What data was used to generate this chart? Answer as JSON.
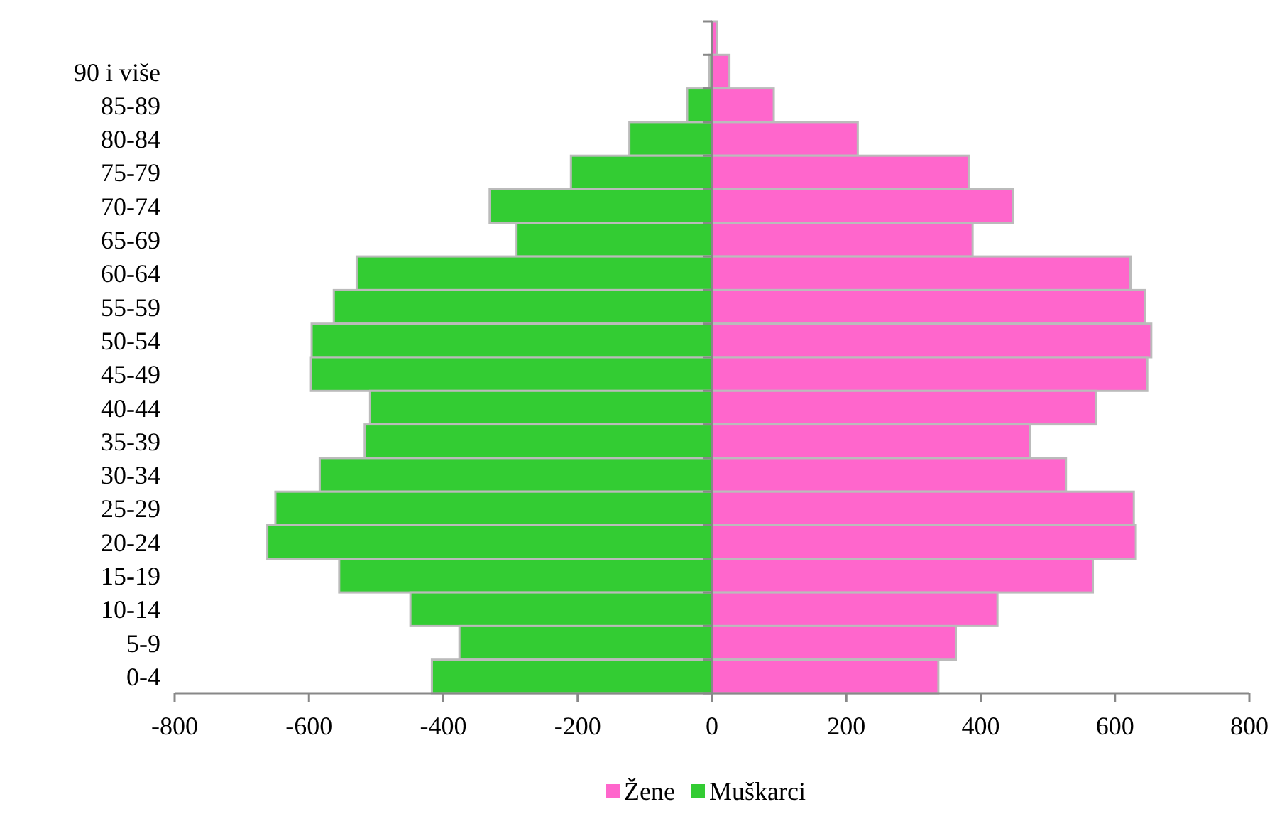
{
  "chart_data": {
    "type": "bar",
    "orientation": "horizontal",
    "categories": [
      null,
      "90 i više",
      "85-89",
      "80-84",
      "75-79",
      "70-74",
      "65-69",
      "60-64",
      "55-59",
      "50-54",
      "45-49",
      "40-44",
      "35-39",
      "30-34",
      "25-29",
      "20-24",
      "15-19",
      "10-14",
      "5-9",
      "0-4"
    ],
    "series": [
      {
        "name": "Žene",
        "color": "#ff66cc",
        "values": [
          7,
          26,
          92,
          217,
          382,
          448,
          388,
          623,
          645,
          654,
          648,
          572,
          473,
          527,
          628,
          631,
          567,
          425,
          363,
          337
        ]
      },
      {
        "name": "Muškarci",
        "color": "#33cc33",
        "values": [
          null,
          -4,
          -37,
          -123,
          -210,
          -331,
          -291,
          -529,
          -563,
          -596,
          -597,
          -509,
          -517,
          -584,
          -650,
          -662,
          -555,
          -449,
          -376,
          -417
        ]
      }
    ],
    "xlim": [
      -800,
      800
    ],
    "xticks": [
      -800,
      -600,
      -400,
      -200,
      0,
      200,
      400,
      600,
      800
    ],
    "stacked": true,
    "legend": "bottom"
  }
}
